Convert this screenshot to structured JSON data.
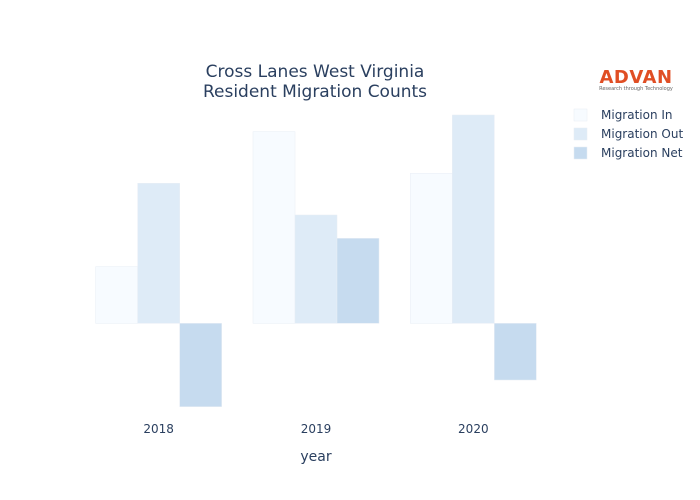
{
  "chart_data": {
    "type": "bar",
    "title": [
      "Cross Lanes West Virginia",
      "Resident Migration Counts"
    ],
    "xlabel": "year",
    "ylabel": "",
    "categories": [
      "2018",
      "2019",
      "2020"
    ],
    "series": [
      {
        "name": "Migration In",
        "values": [
          34,
          115,
          90
        ],
        "color": "#f7fbff"
      },
      {
        "name": "Migration Out",
        "values": [
          84,
          65,
          125
        ],
        "color": "#deebf7"
      },
      {
        "name": "Migration Net",
        "values": [
          -50,
          51,
          -34
        ],
        "color": "#c6dbef"
      }
    ],
    "ylim": [
      -52,
      128
    ],
    "grid": false,
    "legend_position": "top-right"
  },
  "logo": {
    "text": "ADVAN",
    "tagline": "Research through Technology"
  }
}
